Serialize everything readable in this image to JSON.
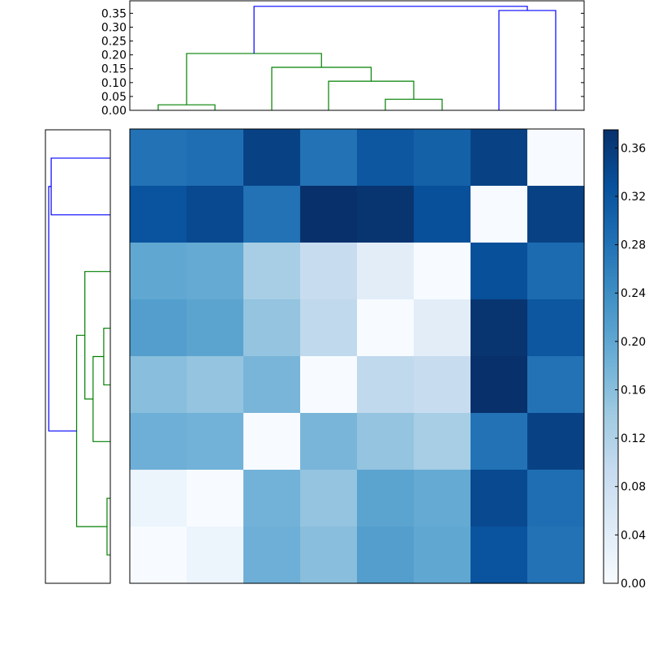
{
  "chart_data": [
    {
      "type": "dendrogram",
      "orientation": "top",
      "yticks": [
        "0.00",
        "0.05",
        "0.10",
        "0.15",
        "0.20",
        "0.25",
        "0.30",
        "0.35"
      ],
      "ylim": [
        0,
        0.395
      ],
      "xlim": [
        0,
        8
      ],
      "links": [
        {
          "x1": 0.5,
          "x2": 1.5,
          "h": 0.02,
          "b1": 0,
          "b2": 0,
          "color": "#008000"
        },
        {
          "x1": 4.5,
          "x2": 5.5,
          "h": 0.04,
          "b1": 0,
          "b2": 0,
          "color": "#008000"
        },
        {
          "x1": 3.5,
          "x2": 5.0,
          "h": 0.105,
          "b1": 0,
          "b2": 0.04,
          "color": "#008000"
        },
        {
          "x1": 2.5,
          "x2": 4.25,
          "h": 0.155,
          "b1": 0,
          "b2": 0.105,
          "color": "#008000"
        },
        {
          "x1": 1.0,
          "x2": 3.375,
          "h": 0.205,
          "b1": 0.02,
          "b2": 0.155,
          "color": "#008000"
        },
        {
          "x1": 6.5,
          "x2": 7.5,
          "h": 0.36,
          "b1": 0,
          "b2": 0,
          "color": "#0000ff"
        },
        {
          "x1": 2.1875,
          "x2": 7.0,
          "h": 0.375,
          "b1": 0.205,
          "b2": 0.36,
          "color": "#0000ff"
        }
      ]
    },
    {
      "type": "dendrogram",
      "orientation": "left",
      "ylim": [
        0,
        8
      ],
      "xlim": [
        0.395,
        0
      ],
      "links": [
        {
          "x1": 0.5,
          "x2": 1.5,
          "h": 0.02,
          "b1": 0,
          "b2": 0,
          "color": "#008000"
        },
        {
          "x1": 3.5,
          "x2": 4.5,
          "h": 0.04,
          "b1": 0,
          "b2": 0,
          "color": "#008000"
        },
        {
          "x1": 2.5,
          "x2": 4.0,
          "h": 0.105,
          "b1": 0,
          "b2": 0.04,
          "color": "#008000"
        },
        {
          "x1": 3.25,
          "x2": 5.5,
          "h": 0.155,
          "b1": 0.105,
          "b2": 0,
          "color": "#008000"
        },
        {
          "x1": 1.0,
          "x2": 4.375,
          "h": 0.205,
          "b1": 0.02,
          "b2": 0.155,
          "color": "#008000"
        },
        {
          "x1": 6.5,
          "x2": 7.5,
          "h": 0.36,
          "b1": 0,
          "b2": 0,
          "color": "#0000ff"
        },
        {
          "x1": 2.6875,
          "x2": 7.0,
          "h": 0.375,
          "b1": 0.205,
          "b2": 0.36,
          "color": "#0000ff"
        }
      ]
    },
    {
      "type": "heatmap",
      "colormap": "Blues",
      "vmin": 0,
      "vmax": 0.375,
      "values": [
        [
          0.28,
          0.285,
          0.35,
          0.28,
          0.32,
          0.305,
          0.35,
          0.0
        ],
        [
          0.325,
          0.34,
          0.28,
          0.375,
          0.37,
          0.33,
          0.0,
          0.35
        ],
        [
          0.2,
          0.195,
          0.13,
          0.09,
          0.04,
          0.0,
          0.33,
          0.29
        ],
        [
          0.215,
          0.205,
          0.15,
          0.1,
          0.0,
          0.04,
          0.37,
          0.32
        ],
        [
          0.16,
          0.15,
          0.175,
          0.0,
          0.1,
          0.09,
          0.375,
          0.28
        ],
        [
          0.185,
          0.18,
          0.0,
          0.175,
          0.15,
          0.13,
          0.28,
          0.35
        ],
        [
          0.02,
          0.0,
          0.18,
          0.15,
          0.205,
          0.195,
          0.34,
          0.285
        ],
        [
          0.0,
          0.02,
          0.185,
          0.16,
          0.215,
          0.2,
          0.325,
          0.28
        ]
      ]
    },
    {
      "type": "colorbar",
      "colormap": "Blues",
      "min": 0,
      "max": 0.375,
      "ticks": [
        "0.00",
        "0.04",
        "0.08",
        "0.12",
        "0.16",
        "0.20",
        "0.24",
        "0.28",
        "0.32",
        "0.36"
      ]
    }
  ]
}
